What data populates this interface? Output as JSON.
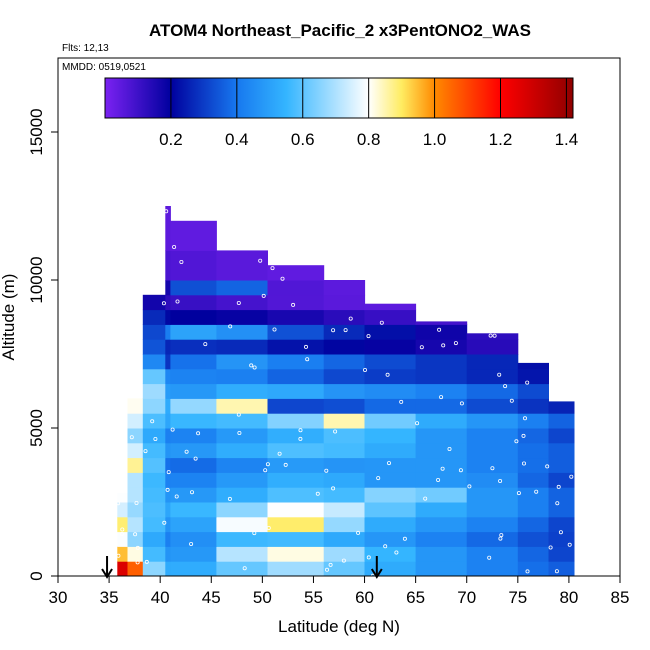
{
  "chart_data": {
    "type": "heatmap",
    "title": "ATOM4 Northeast_Pacific_2 x3PentONO2_WAS",
    "flights_label": "Flts: 12,13",
    "dates_label": "MMDD: 0519,0521",
    "xlabel": "Latitude (deg N)",
    "ylabel": "Altitude (m)",
    "xlim": [
      30,
      85
    ],
    "ylim": [
      0,
      17500
    ],
    "x_ticks": [
      30,
      35,
      40,
      45,
      50,
      55,
      60,
      65,
      70,
      75,
      80,
      85
    ],
    "y_ticks": [
      0,
      5000,
      10000,
      15000
    ],
    "colorbar": {
      "min": 0,
      "max": 1.42,
      "ticks": [
        0.2,
        0.4,
        0.6,
        0.8,
        1.0,
        1.2,
        1.4
      ],
      "tick_labels": [
        "0.2",
        "0.4",
        "0.6",
        "0.8",
        "1.0",
        "1.2",
        "1.4"
      ],
      "stops": [
        "#7b22f2",
        "#00009e",
        "#1778ef",
        "#34b5ff",
        "#ffffff",
        "#ffec61",
        "#ff8a00",
        "#ff0000",
        "#8f0000"
      ],
      "stop_values": [
        0,
        0.2,
        0.4,
        0.55,
        0.8,
        0.9,
        1.0,
        1.2,
        1.42
      ]
    },
    "profile_markers_lat": [
      34.8,
      61.2
    ],
    "columns": [
      {
        "lat": [
          35.8,
          36.8
        ],
        "alt": [
          0,
          2800
        ]
      },
      {
        "lat": [
          36.8,
          38.3
        ],
        "alt": [
          0,
          6000
        ]
      },
      {
        "lat": [
          38.3,
          40.5
        ],
        "alt": [
          0,
          9500
        ]
      },
      {
        "lat": [
          40.5,
          41.0
        ],
        "alt": [
          0,
          12500
        ]
      },
      {
        "lat": [
          41.0,
          45.5
        ],
        "alt": [
          0,
          12000
        ]
      },
      {
        "lat": [
          45.5,
          50.5
        ],
        "alt": [
          0,
          11000
        ]
      },
      {
        "lat": [
          50.5,
          56.0
        ],
        "alt": [
          0,
          10500
        ]
      },
      {
        "lat": [
          56.0,
          60.0
        ],
        "alt": [
          0,
          10000
        ]
      },
      {
        "lat": [
          60.0,
          65.0
        ],
        "alt": [
          0,
          9200
        ]
      },
      {
        "lat": [
          65.0,
          70.0
        ],
        "alt": [
          0,
          8600
        ]
      },
      {
        "lat": [
          70.0,
          75.0
        ],
        "alt": [
          0,
          8200
        ]
      },
      {
        "lat": [
          75.0,
          78.0
        ],
        "alt": [
          0,
          7200
        ]
      },
      {
        "lat": [
          78.0,
          80.5
        ],
        "alt": [
          0,
          5900
        ]
      }
    ],
    "layers": [
      {
        "alt": [
          0,
          500
        ],
        "values": [
          [
            35.5,
            1.35
          ],
          [
            37,
            1.2
          ],
          [
            39,
            0.7
          ],
          [
            41,
            0.5
          ],
          [
            45,
            0.55
          ],
          [
            50,
            0.65
          ],
          [
            55,
            0.7
          ],
          [
            60,
            0.55
          ],
          [
            65,
            0.5
          ],
          [
            70,
            0.45
          ],
          [
            75,
            0.4
          ],
          [
            80,
            0.35
          ]
        ]
      },
      {
        "alt": [
          500,
          1000
        ],
        "values": [
          [
            35.5,
            1.0
          ],
          [
            37,
            0.9
          ],
          [
            39,
            0.6
          ],
          [
            41,
            0.45
          ],
          [
            45,
            0.5
          ],
          [
            50,
            0.85
          ],
          [
            55,
            0.8
          ],
          [
            60,
            0.6
          ],
          [
            65,
            0.5
          ],
          [
            70,
            0.45
          ],
          [
            75,
            0.4
          ],
          [
            80,
            0.3
          ]
        ]
      },
      {
        "alt": [
          1000,
          1500
        ],
        "values": [
          [
            35.5,
            0.9
          ],
          [
            37,
            0.7
          ],
          [
            39,
            0.55
          ],
          [
            41,
            0.4
          ],
          [
            45,
            0.5
          ],
          [
            50,
            0.6
          ],
          [
            55,
            0.55
          ],
          [
            60,
            0.5
          ],
          [
            65,
            0.45
          ],
          [
            70,
            0.4
          ],
          [
            75,
            0.35
          ],
          [
            80,
            0.3
          ]
        ]
      },
      {
        "alt": [
          1500,
          2000
        ],
        "values": [
          [
            35.5,
            1.05
          ],
          [
            37,
            0.75
          ],
          [
            39,
            0.6
          ],
          [
            41,
            0.45
          ],
          [
            45,
            0.55
          ],
          [
            50,
            0.95
          ],
          [
            53,
            0.9
          ],
          [
            55,
            0.85
          ],
          [
            60,
            0.55
          ],
          [
            65,
            0.5
          ],
          [
            70,
            0.45
          ],
          [
            75,
            0.4
          ],
          [
            80,
            0.3
          ]
        ]
      },
      {
        "alt": [
          2000,
          2500
        ],
        "values": [
          [
            35.5,
            0.8
          ],
          [
            37,
            0.7
          ],
          [
            39,
            0.6
          ],
          [
            41,
            0.5
          ],
          [
            45,
            0.6
          ],
          [
            50,
            0.7
          ],
          [
            55,
            0.85
          ],
          [
            60,
            0.65
          ],
          [
            65,
            0.55
          ],
          [
            70,
            0.5
          ],
          [
            75,
            0.45
          ],
          [
            80,
            0.35
          ]
        ]
      },
      {
        "alt": [
          2500,
          3000
        ],
        "values": [
          [
            35.5,
            0.85
          ],
          [
            37,
            0.75
          ],
          [
            39,
            0.6
          ],
          [
            41,
            0.45
          ],
          [
            45,
            0.5
          ],
          [
            50,
            0.55
          ],
          [
            55,
            0.6
          ],
          [
            60,
            0.55
          ],
          [
            65,
            0.75
          ],
          [
            70,
            0.5
          ],
          [
            75,
            0.45
          ],
          [
            80,
            0.35
          ]
        ]
      },
      {
        "alt": [
          3000,
          3500
        ],
        "values": [
          [
            37,
            0.75
          ],
          [
            39,
            0.6
          ],
          [
            41,
            0.4
          ],
          [
            45,
            0.45
          ],
          [
            50,
            0.5
          ],
          [
            55,
            0.55
          ],
          [
            60,
            0.5
          ],
          [
            65,
            0.45
          ],
          [
            70,
            0.5
          ],
          [
            75,
            0.4
          ],
          [
            80,
            0.3
          ]
        ]
      },
      {
        "alt": [
          3500,
          4000
        ],
        "values": [
          [
            37,
            0.95
          ],
          [
            39,
            0.65
          ],
          [
            41,
            0.35
          ],
          [
            45,
            0.4
          ],
          [
            50,
            0.45
          ],
          [
            55,
            0.5
          ],
          [
            60,
            0.45
          ],
          [
            65,
            0.5
          ],
          [
            70,
            0.45
          ],
          [
            75,
            0.4
          ],
          [
            80,
            0.35
          ]
        ]
      },
      {
        "alt": [
          4000,
          4500
        ],
        "values": [
          [
            37,
            0.8
          ],
          [
            39,
            0.6
          ],
          [
            41,
            0.45
          ],
          [
            45,
            0.5
          ],
          [
            50,
            0.55
          ],
          [
            55,
            0.6
          ],
          [
            60,
            0.55
          ],
          [
            65,
            0.5
          ],
          [
            70,
            0.45
          ],
          [
            75,
            0.4
          ],
          [
            80,
            0.35
          ]
        ]
      },
      {
        "alt": [
          4500,
          5000
        ],
        "values": [
          [
            37,
            0.7
          ],
          [
            39,
            0.55
          ],
          [
            41,
            0.4
          ],
          [
            45,
            0.45
          ],
          [
            50,
            0.5
          ],
          [
            55,
            0.55
          ],
          [
            60,
            0.6
          ],
          [
            65,
            0.5
          ],
          [
            70,
            0.45
          ],
          [
            75,
            0.4
          ],
          [
            80,
            0.3
          ]
        ]
      },
      {
        "alt": [
          5000,
          5500
        ],
        "values": [
          [
            37,
            0.8
          ],
          [
            39,
            0.6
          ],
          [
            41,
            0.5
          ],
          [
            45,
            0.6
          ],
          [
            50,
            0.55
          ],
          [
            55,
            0.7
          ],
          [
            58,
            0.85
          ],
          [
            60,
            0.7
          ],
          [
            65,
            0.55
          ],
          [
            70,
            0.5
          ],
          [
            75,
            0.45
          ],
          [
            80,
            0.35
          ]
        ]
      },
      {
        "alt": [
          5500,
          6000
        ],
        "values": [
          [
            37,
            0.85
          ],
          [
            39,
            0.7
          ],
          [
            41,
            0.5
          ],
          [
            45,
            0.8
          ],
          [
            47,
            1.0
          ],
          [
            49,
            0.7
          ],
          [
            50,
            0.35
          ],
          [
            55,
            0.3
          ],
          [
            60,
            0.35
          ],
          [
            65,
            0.4
          ],
          [
            70,
            0.35
          ],
          [
            75,
            0.3
          ],
          [
            80,
            0.25
          ]
        ]
      },
      {
        "alt": [
          6000,
          6500
        ],
        "values": [
          [
            38.5,
            0.8
          ],
          [
            40,
            0.6
          ],
          [
            41,
            0.45
          ],
          [
            45,
            0.5
          ],
          [
            50,
            0.55
          ],
          [
            55,
            0.5
          ],
          [
            60,
            0.45
          ],
          [
            65,
            0.45
          ],
          [
            70,
            0.4
          ],
          [
            75,
            0.35
          ],
          [
            78,
            0.3
          ]
        ]
      },
      {
        "alt": [
          6500,
          7000
        ],
        "values": [
          [
            38.5,
            0.7
          ],
          [
            40,
            0.55
          ],
          [
            41,
            0.4
          ],
          [
            45,
            0.45
          ],
          [
            50,
            0.4
          ],
          [
            55,
            0.35
          ],
          [
            60,
            0.3
          ],
          [
            65,
            0.3
          ],
          [
            70,
            0.28
          ],
          [
            75,
            0.25
          ],
          [
            78,
            0.22
          ]
        ]
      },
      {
        "alt": [
          7000,
          7500
        ],
        "values": [
          [
            38.5,
            0.5
          ],
          [
            40,
            0.4
          ],
          [
            41,
            0.25
          ],
          [
            45,
            0.5
          ],
          [
            50,
            0.45
          ],
          [
            55,
            0.4
          ],
          [
            60,
            0.35
          ],
          [
            65,
            0.3
          ],
          [
            70,
            0.28
          ],
          [
            75,
            0.25
          ],
          [
            78,
            0.2
          ]
        ]
      },
      {
        "alt": [
          7500,
          8000
        ],
        "values": [
          [
            38.5,
            0.4
          ],
          [
            40,
            0.3
          ],
          [
            41,
            0.25
          ],
          [
            45,
            0.3
          ],
          [
            50,
            0.25
          ],
          [
            55,
            0.22
          ],
          [
            60,
            0.2
          ],
          [
            65,
            0.18
          ],
          [
            70,
            0.15
          ],
          [
            75,
            0.12
          ]
        ]
      },
      {
        "alt": [
          8000,
          8500
        ],
        "values": [
          [
            38.5,
            0.35
          ],
          [
            40,
            0.3
          ],
          [
            41,
            0.45
          ],
          [
            45,
            0.55
          ],
          [
            50,
            0.4
          ],
          [
            55,
            0.3
          ],
          [
            60,
            0.25
          ],
          [
            65,
            0.2
          ],
          [
            70,
            0.15
          ],
          [
            75,
            0.1
          ]
        ]
      },
      {
        "alt": [
          8500,
          9000
        ],
        "values": [
          [
            38.5,
            0.3
          ],
          [
            40,
            0.25
          ],
          [
            41,
            0.2
          ],
          [
            45,
            0.2
          ],
          [
            50,
            0.18
          ],
          [
            55,
            0.15
          ],
          [
            60,
            0.12
          ],
          [
            65,
            0.1
          ],
          [
            70,
            0.08
          ],
          [
            75,
            0.06
          ]
        ]
      },
      {
        "alt": [
          9000,
          9500
        ],
        "values": [
          [
            38.5,
            0.2
          ],
          [
            40,
            0.15
          ],
          [
            41,
            0.12
          ],
          [
            45,
            0.1
          ],
          [
            50,
            0.08
          ],
          [
            55,
            0.06
          ],
          [
            60,
            0.05
          ],
          [
            65,
            0.05
          ]
        ]
      },
      {
        "alt": [
          9500,
          10000
        ],
        "values": [
          [
            40.5,
            0.15
          ],
          [
            45,
            0.45
          ],
          [
            47,
            0.5
          ],
          [
            50,
            0.1
          ],
          [
            55,
            0.05
          ],
          [
            60,
            0.05
          ]
        ]
      },
      {
        "alt": [
          10000,
          11000
        ],
        "values": [
          [
            40.5,
            0.08
          ],
          [
            45,
            0.06
          ],
          [
            50,
            0.05
          ],
          [
            55,
            0.04
          ]
        ]
      },
      {
        "alt": [
          11000,
          12500
        ],
        "values": [
          [
            40.5,
            0.05
          ],
          [
            45,
            0.04
          ]
        ]
      }
    ]
  }
}
